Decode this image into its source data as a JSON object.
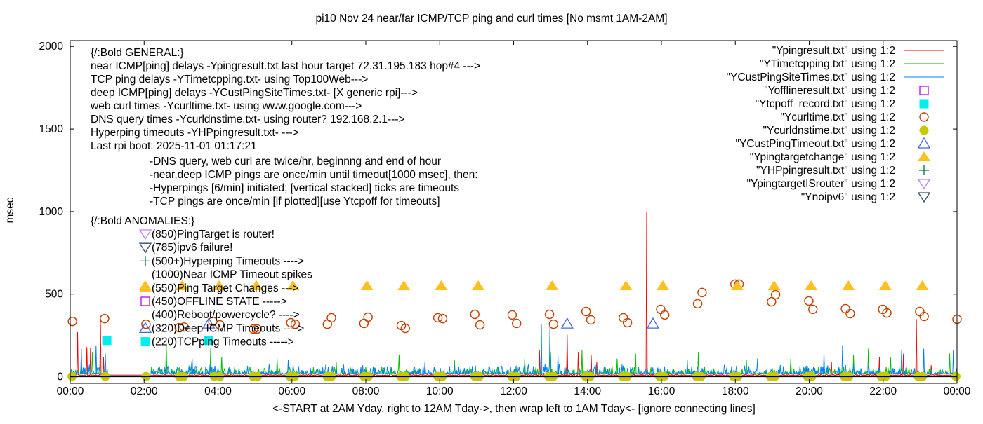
{
  "chart_data": {
    "type": "line",
    "title": "pi10 Nov 24  near/far ICMP/TCP ping and curl times [No msmt 1AM-2AM]",
    "xlabel": "<-START at 2AM Yday, right to 12AM Tday->, then wrap left to 1AM Tday<- [ignore connecting lines]",
    "ylabel": "msec",
    "xlim": [
      0,
      24
    ],
    "ylim": [
      -40,
      2035
    ],
    "x_unit": "hours",
    "x_ticks": [
      0,
      2,
      4,
      6,
      8,
      10,
      12,
      14,
      16,
      18,
      20,
      22,
      24
    ],
    "x_tick_labels": [
      "00:00",
      "02:00",
      "04:00",
      "06:00",
      "08:00",
      "10:00",
      "12:00",
      "14:00",
      "16:00",
      "18:00",
      "20:00",
      "22:00",
      "00:00"
    ],
    "y_ticks": [
      0,
      500,
      1000,
      1500,
      2000
    ],
    "y_tick_labels": [
      "0",
      "500",
      "1000",
      "1500",
      "2000"
    ],
    "grid": false,
    "legend_position": "top-right",
    "no_measurement_hours": [
      1.0,
      2.2
    ],
    "annotations": {
      "general_title": "{/:Bold GENERAL:}",
      "general_lines": [
        "near ICMP[ping] delays -Ypingresult.txt last hour target 72.31.195.183 hop#4 --->",
        "TCP ping delays -YTimetcpping.txt- using Top100Web--->",
        "deep ICMP[ping] delays -YCustPingSiteTimes.txt- [X generic rpi]--->",
        "web curl times -Ycurltime.txt- using www.google.com--->",
        "DNS query times -Ycurldnstime.txt- using router? 192.168.2.1--->",
        "Hyperping timeouts -YHPpingresult.txt- --->",
        "Last rpi boot: 2025-11-01 01:17:21"
      ],
      "notes": [
        "-DNS query, web curl are twice/hr, beginnng and end of hour",
        "-near,deep ICMP pings are once/min until timeout[1000 msec], then:",
        "  -Hyperpings [6/min] initiated; [vertical stacked] ticks are timeouts",
        "-TCP pings are once/min [if plotted][use Ytcpoff for timeouts]"
      ],
      "anomalies_title": "{/:Bold ANOMALIES:}",
      "anomalies": [
        {
          "text": "(850)PingTarget is router!",
          "marker": "ytargetisrouter"
        },
        {
          "text": "(785)ipv6 failure!",
          "marker": "noipv6"
        },
        {
          "text": "(500+)Hyperping Timeouts ---->",
          "marker": "hpping"
        },
        {
          "text": "(1000)Near ICMP Timeout spikes",
          "marker": ""
        },
        {
          "text": "(550)Ping Target Changes --->",
          "marker": "targetchange"
        },
        {
          "text": "(450)OFFLINE STATE ----->",
          "marker": "offline"
        },
        {
          "text": "(400)Reboot/powercycle? ---->",
          "marker": ""
        },
        {
          "text": "(320)Deep ICMP Timeouts ---->",
          "marker": "custtimeout"
        },
        {
          "text": "(220)TCPping Timeouts ----->",
          "marker": "tcpoff"
        }
      ]
    },
    "series": [
      {
        "id": "pingresult",
        "name": "\"Ypingresult.txt\" using 1:2",
        "style": "line",
        "color": "#ff0000",
        "baseline": 8,
        "noise_amp": 12,
        "seed": 7,
        "spikes": [
          [
            0.2,
            270
          ],
          [
            0.45,
            180
          ],
          [
            0.55,
            175
          ],
          [
            0.82,
            355
          ],
          [
            0.9,
            120
          ],
          [
            12.7,
            160
          ],
          [
            13.45,
            255
          ],
          [
            13.75,
            150
          ],
          [
            14.1,
            130
          ],
          [
            14.25,
            90
          ],
          [
            15.6,
            1000
          ],
          [
            20.6,
            90
          ],
          [
            21.9,
            120
          ],
          [
            22.55,
            140
          ],
          [
            22.9,
            350
          ],
          [
            23.3,
            70
          ]
        ]
      },
      {
        "id": "timetcpping",
        "name": "\"YTimetcpping.txt\" using 1:2",
        "style": "line",
        "color": "#00c000",
        "baseline": 16,
        "noise_amp": 45,
        "seed": 13,
        "spikes": [
          [
            0.6,
            150
          ],
          [
            2.6,
            200
          ],
          [
            3.8,
            170
          ],
          [
            4.1,
            120
          ],
          [
            5.6,
            110
          ],
          [
            7.2,
            90
          ],
          [
            8.9,
            130
          ],
          [
            10.4,
            100
          ],
          [
            12.3,
            110
          ],
          [
            13.0,
            150
          ],
          [
            13.85,
            160
          ],
          [
            14.8,
            110
          ],
          [
            15.3,
            140
          ],
          [
            17.0,
            150
          ],
          [
            18.3,
            100
          ],
          [
            19.5,
            110
          ],
          [
            21.2,
            130
          ],
          [
            21.6,
            170
          ],
          [
            22.2,
            120
          ],
          [
            23.8,
            140
          ]
        ]
      },
      {
        "id": "custpingsitetimes",
        "name": "\"YCustPingSiteTimes.txt\" using 1:2",
        "style": "line",
        "color": "#0080ff",
        "baseline": 16,
        "noise_amp": 60,
        "seed": 29,
        "spikes": [
          [
            0.3,
            170
          ],
          [
            0.7,
            190
          ],
          [
            0.95,
            140
          ],
          [
            3.3,
            110
          ],
          [
            5.9,
            100
          ],
          [
            9.6,
            90
          ],
          [
            12.75,
            320
          ],
          [
            12.98,
            300
          ],
          [
            13.2,
            130
          ],
          [
            16.7,
            100
          ],
          [
            18.6,
            110
          ],
          [
            20.4,
            140
          ],
          [
            20.9,
            190
          ],
          [
            22.5,
            160
          ],
          [
            23.1,
            170
          ],
          [
            23.9,
            160
          ]
        ]
      },
      {
        "id": "offline",
        "name": "\"Yofflineresult.txt\" using 1:2",
        "style": "open-square",
        "color": "#c000ff",
        "points": []
      },
      {
        "id": "tcpoff",
        "name": "\"Ytcpoff_record.txt\" using 1:2",
        "style": "filled-square",
        "color": "#00eeee",
        "points": [
          [
            0.99,
            220
          ],
          [
            3.75,
            220
          ]
        ]
      },
      {
        "id": "curltime",
        "name": "\"Ycurltime.txt\" using 1:2",
        "style": "open-circle",
        "color": "#c04000",
        "points": [
          [
            0.06,
            335
          ],
          [
            0.93,
            352
          ],
          [
            2.05,
            318
          ],
          [
            2.95,
            297
          ],
          [
            3.08,
            301
          ],
          [
            3.86,
            335
          ],
          [
            4.05,
            314
          ],
          [
            4.96,
            289
          ],
          [
            5.06,
            289
          ],
          [
            5.97,
            327
          ],
          [
            6.09,
            318
          ],
          [
            6.96,
            318
          ],
          [
            7.07,
            357
          ],
          [
            7.95,
            323
          ],
          [
            8.06,
            361
          ],
          [
            8.96,
            310
          ],
          [
            9.07,
            293
          ],
          [
            9.95,
            357
          ],
          [
            10.08,
            352
          ],
          [
            10.95,
            378
          ],
          [
            11.09,
            314
          ],
          [
            11.96,
            374
          ],
          [
            12.08,
            323
          ],
          [
            12.97,
            378
          ],
          [
            13.08,
            318
          ],
          [
            13.96,
            395
          ],
          [
            14.09,
            344
          ],
          [
            14.97,
            357
          ],
          [
            15.08,
            327
          ],
          [
            15.98,
            408
          ],
          [
            16.09,
            374
          ],
          [
            16.98,
            442
          ],
          [
            17.1,
            510
          ],
          [
            17.99,
            561
          ],
          [
            18.1,
            561
          ],
          [
            18.98,
            454
          ],
          [
            19.09,
            497
          ],
          [
            19.99,
            459
          ],
          [
            20.1,
            408
          ],
          [
            20.98,
            412
          ],
          [
            21.11,
            382
          ],
          [
            21.99,
            408
          ],
          [
            22.1,
            386
          ],
          [
            22.99,
            395
          ],
          [
            23.11,
            365
          ],
          [
            24.0,
            348
          ]
        ]
      },
      {
        "id": "curldnstime",
        "name": "\"Ycurldnstime.txt\" using 1:2",
        "style": "filled-circle",
        "color": "#c8c800",
        "points": [
          [
            0.05,
            2
          ],
          [
            0.95,
            2
          ],
          [
            2.05,
            2
          ],
          [
            2.95,
            2
          ],
          [
            3.07,
            2
          ],
          [
            3.9,
            2
          ],
          [
            4.05,
            2
          ],
          [
            4.95,
            2
          ],
          [
            5.07,
            2
          ],
          [
            5.95,
            2
          ],
          [
            6.07,
            2
          ],
          [
            6.95,
            2
          ],
          [
            7.07,
            2
          ],
          [
            7.95,
            2
          ],
          [
            8.07,
            2
          ],
          [
            8.95,
            2
          ],
          [
            9.07,
            2
          ],
          [
            9.95,
            2
          ],
          [
            10.07,
            2
          ],
          [
            10.95,
            2
          ],
          [
            11.07,
            2
          ],
          [
            11.95,
            2
          ],
          [
            12.07,
            2
          ],
          [
            12.95,
            2
          ],
          [
            13.07,
            2
          ],
          [
            13.95,
            2
          ],
          [
            14.07,
            2
          ],
          [
            14.95,
            2
          ],
          [
            15.07,
            2
          ],
          [
            15.95,
            2
          ],
          [
            16.07,
            2
          ],
          [
            16.95,
            2
          ],
          [
            17.07,
            2
          ],
          [
            17.95,
            2
          ],
          [
            18.07,
            2
          ],
          [
            18.95,
            2
          ],
          [
            19.07,
            2
          ],
          [
            19.95,
            2
          ],
          [
            20.07,
            2
          ],
          [
            20.95,
            2
          ],
          [
            21.07,
            2
          ],
          [
            21.95,
            2
          ],
          [
            22.07,
            2
          ],
          [
            22.95,
            2
          ],
          [
            23.07,
            2
          ],
          [
            23.97,
            2
          ]
        ]
      },
      {
        "id": "custtimeout",
        "name": "\"YCustPingTimeout.txt\" using 1:2",
        "style": "open-triangle",
        "color": "#4169e1",
        "points": [
          [
            3.75,
            320
          ],
          [
            13.45,
            320
          ],
          [
            15.77,
            320
          ]
        ]
      },
      {
        "id": "targetchange",
        "name": "\"Ypingtargetchange\" using 1:2",
        "style": "filled-triangle",
        "color": "#ffc020",
        "points": [
          [
            2.03,
            550
          ],
          [
            3.03,
            550
          ],
          [
            4.03,
            550
          ],
          [
            5.04,
            550
          ],
          [
            6.03,
            550
          ],
          [
            8.03,
            550
          ],
          [
            9.03,
            550
          ],
          [
            10.04,
            550
          ],
          [
            11.04,
            550
          ],
          [
            13.04,
            550
          ],
          [
            15.04,
            550
          ],
          [
            16.04,
            550
          ],
          [
            18.05,
            550
          ],
          [
            19.05,
            550
          ],
          [
            20.05,
            550
          ],
          [
            21.06,
            550
          ],
          [
            22.06,
            550
          ],
          [
            23.06,
            550
          ]
        ]
      },
      {
        "id": "hpping",
        "name": "\"YHPpingresult.txt\" using 1:2",
        "style": "plus",
        "color": "#006f3c",
        "points": []
      },
      {
        "id": "ytargetisrouter",
        "name": "\"YpingtargetISrouter\" using 1:2",
        "style": "open-down-triangle",
        "color": "#c080ff",
        "points": []
      },
      {
        "id": "noipv6",
        "name": "\"Ynoipv6\" using 1:2",
        "style": "open-down-triangle",
        "color": "#2f4f6f",
        "points": []
      }
    ]
  }
}
